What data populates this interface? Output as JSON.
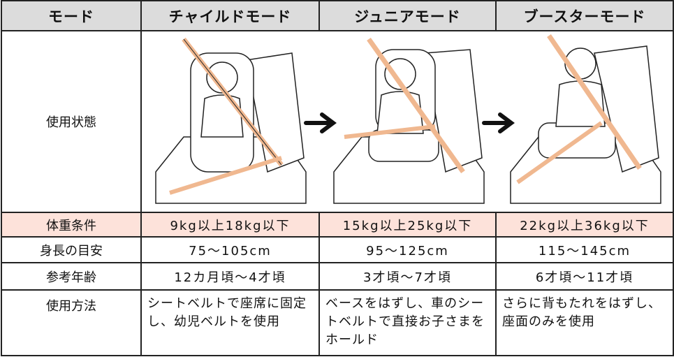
{
  "table": {
    "header": [
      "モード",
      "チャイルドモード",
      "ジュニアモード",
      "ブースターモード"
    ],
    "rows": [
      [
        "使用状態"
      ],
      [
        "体重条件",
        "9kg以上18kg以下",
        "15kg以上25kg以下",
        "22kg以上36kg以下"
      ],
      [
        "身長の目安",
        "75～105cm",
        "95～125cm",
        "115～145cm"
      ],
      [
        "参考年齢",
        "12カ月頃～4才頃",
        "3才頃～7才頃",
        "6才頃～11才頃"
      ],
      [
        "使用方法",
        "シートベルトで座席に固定し、幼児ベルトを使用",
        "ベースをはずし、車のシートベルトで直接お子さまをホールド",
        "さらに背もたれをはずし、座面のみを使用"
      ]
    ]
  }
}
